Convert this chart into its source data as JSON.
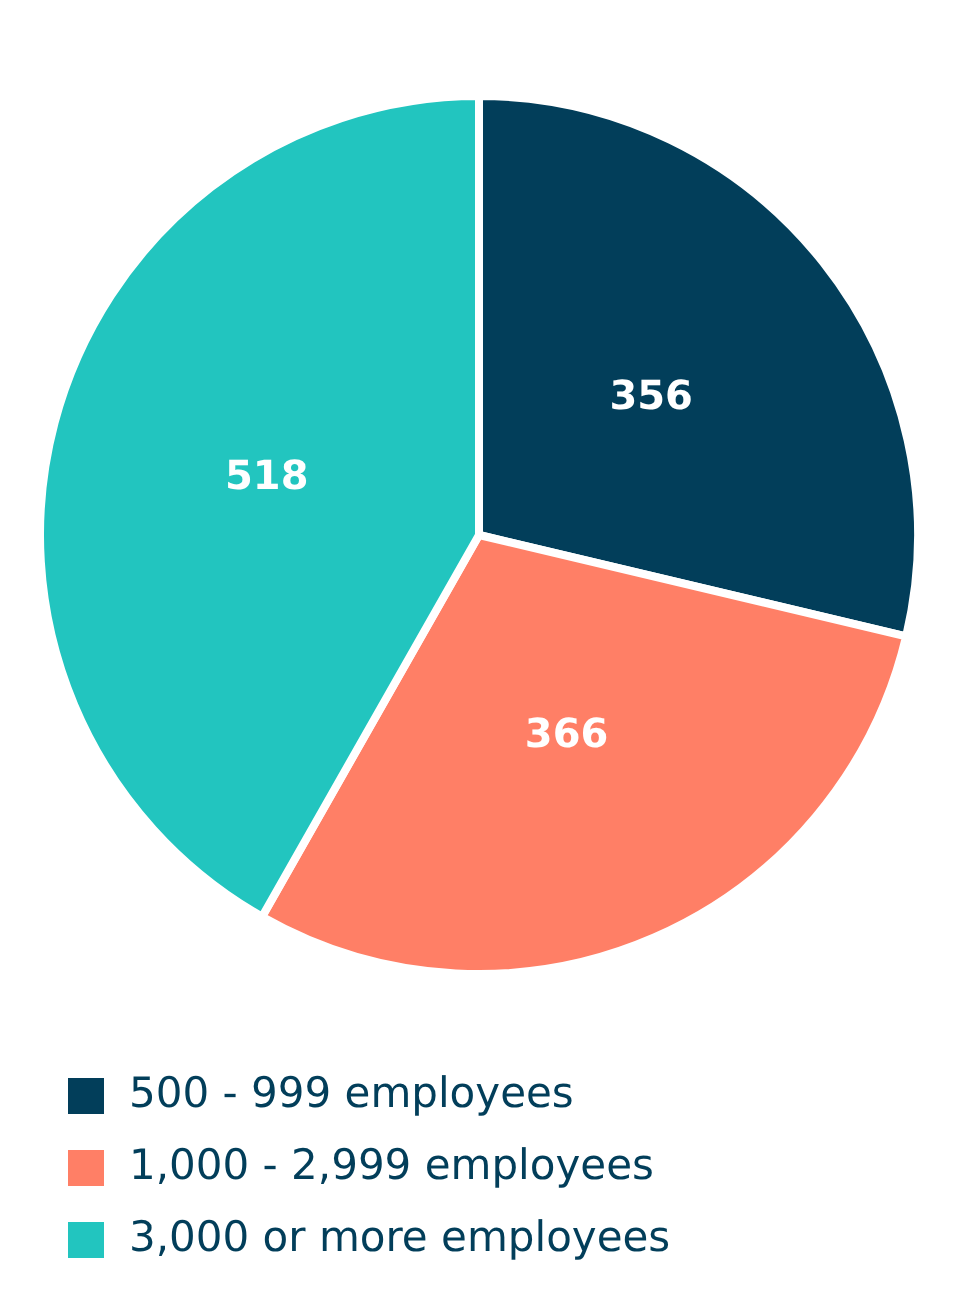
{
  "chart_data": {
    "type": "pie",
    "categories": [
      "500 - 999 employees",
      "1,000 - 2,999 employees",
      "3,000 or more employees"
    ],
    "values": [
      356,
      366,
      518
    ],
    "colors": [
      "#023e5a",
      "#ff7f66",
      "#22c5bf"
    ],
    "data_labels": true,
    "legend": "bottom"
  }
}
